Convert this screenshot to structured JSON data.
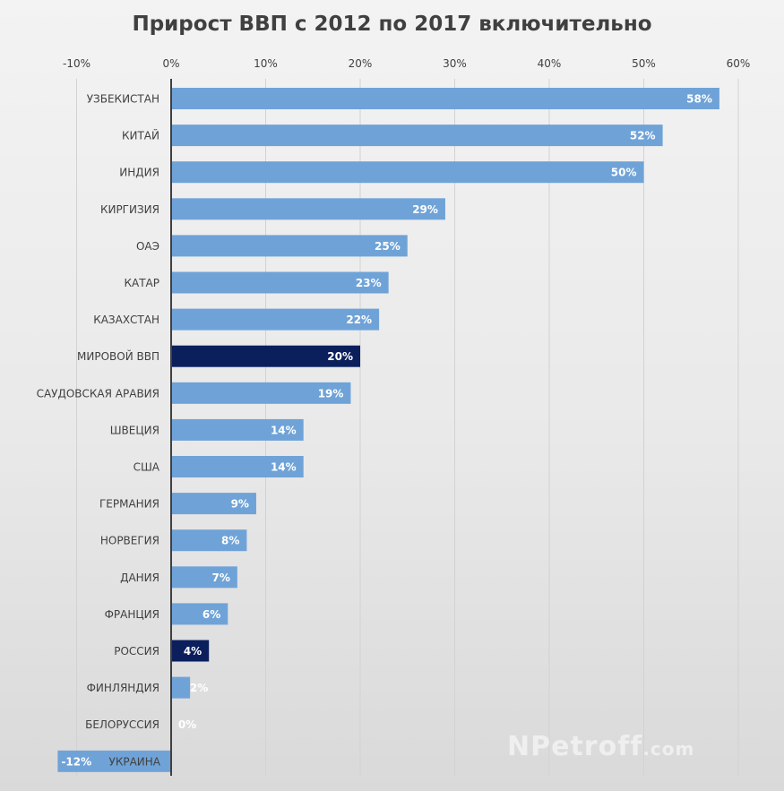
{
  "chart_data": {
    "type": "bar",
    "orientation": "horizontal",
    "title": "Прирост ВВП с 2012 по 2017 включительно",
    "xlabel": "",
    "ylabel": "",
    "xlim": [
      -10,
      60
    ],
    "x_ticks": [
      "-10%",
      "0%",
      "10%",
      "20%",
      "30%",
      "40%",
      "50%",
      "60%"
    ],
    "x_tick_values": [
      -10,
      0,
      10,
      20,
      30,
      40,
      50,
      60
    ],
    "grid": true,
    "value_unit": "%",
    "categories": [
      "УЗБЕКИСТАН",
      "КИТАЙ",
      "ИНДИЯ",
      "КИРГИЗИЯ",
      "ОАЭ",
      "КАТАР",
      "КАЗАХСТАН",
      "МИРОВОЙ ВВП",
      "САУДОВСКАЯ АРАВИЯ",
      "ШВЕЦИЯ",
      "США",
      "ГЕРМАНИЯ",
      "НОРВЕГИЯ",
      "ДАНИЯ",
      "ФРАНЦИЯ",
      "РОССИЯ",
      "ФИНЛЯНДИЯ",
      "БЕЛОРУССИЯ",
      "УКРАИНА"
    ],
    "values": [
      58,
      52,
      50,
      29,
      25,
      23,
      22,
      20,
      19,
      14,
      14,
      9,
      8,
      7,
      6,
      4,
      2,
      0,
      -12
    ],
    "data_labels": [
      "58%",
      "52%",
      "50%",
      "29%",
      "25%",
      "23%",
      "22%",
      "20%",
      "19%",
      "14%",
      "14%",
      "9%",
      "8%",
      "7%",
      "6%",
      "4%",
      "2%",
      "0%",
      "-12%"
    ],
    "highlighted": [
      "МИРОВОЙ ВВП",
      "РОССИЯ"
    ],
    "colors": {
      "bar": "#6fa3d8",
      "highlight": "#0b1f5c",
      "axis": "#404040",
      "grid": "#d2d2d2",
      "label": "#404040",
      "data_label": "#ffffff"
    }
  },
  "watermark": {
    "text": "NPetroff",
    "suffix": ".com"
  }
}
